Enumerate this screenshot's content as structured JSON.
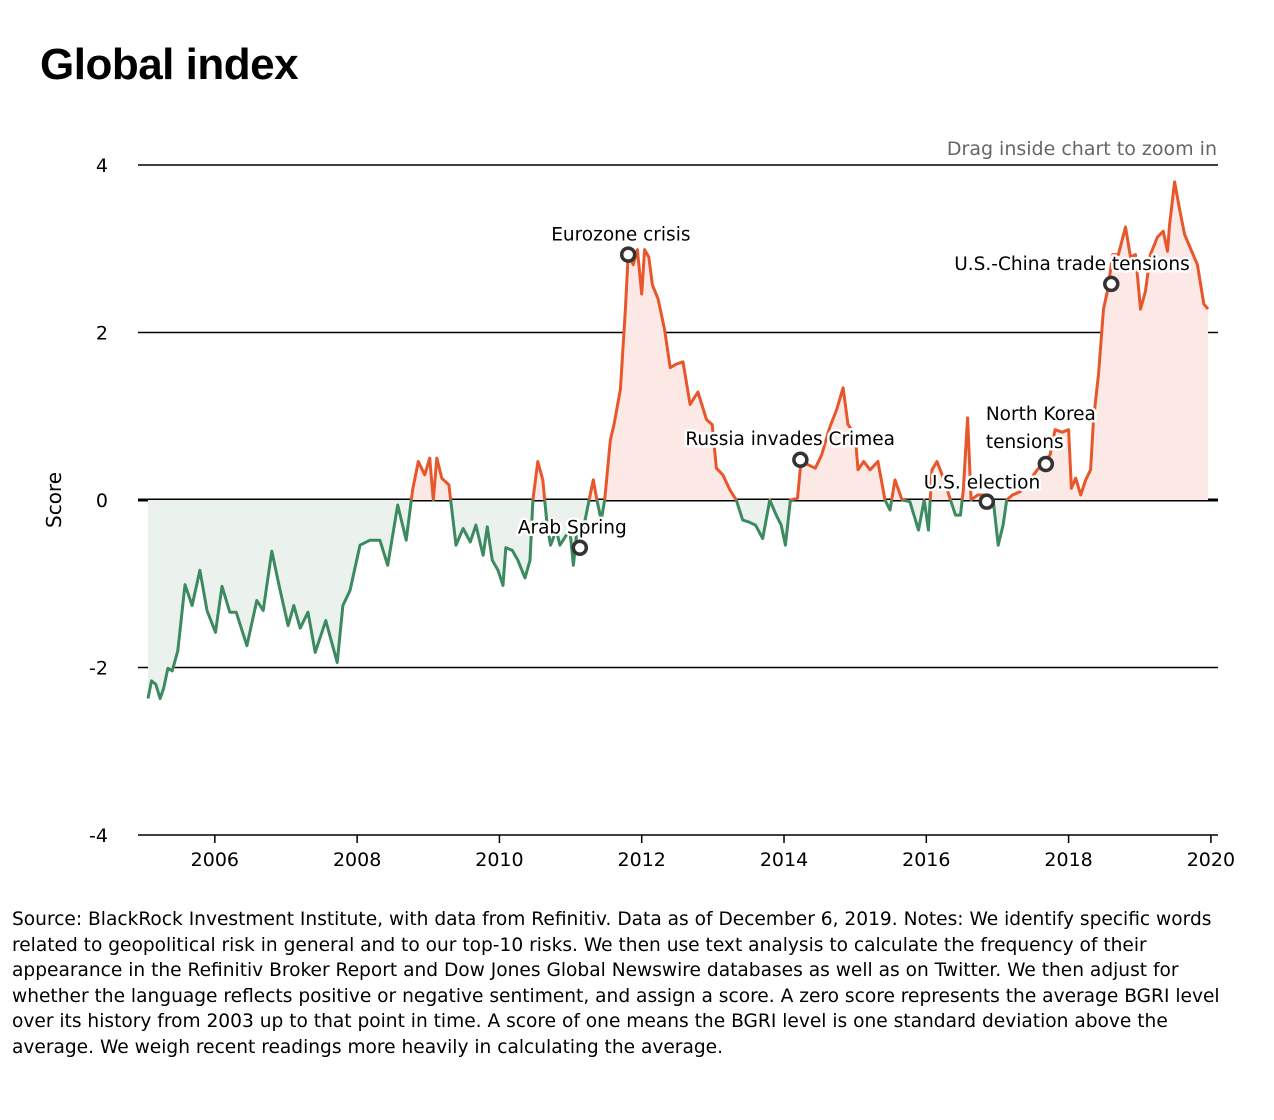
{
  "title": "Global index",
  "hint": "Drag inside chart to zoom in",
  "footnote": "Source: BlackRock Investment Institute, with data from Refinitiv. Data as of December 6, 2019. Notes: We identify specific words related to geopolitical risk in general and to our top-10 risks. We then use text analysis to calculate the frequency of their appearance in the Refinitiv Broker Report and Dow Jones Global Newswire databases as well as on Twitter. We then adjust for whether the language reflects positive or negative sentiment, and assign a score. A zero score represents the average BGRI level over its history from 2003 up to that point in time. A score of one means the BGRI level is one standard deviation above the average. We weigh recent readings more heavily in calculating the average.",
  "chart_data": {
    "type": "area",
    "title": "Global index",
    "xlabel": "",
    "ylabel": "Score",
    "xlim": [
      2004.92,
      2020.1
    ],
    "ylim": [
      -4,
      4
    ],
    "xticks": [
      "2006",
      "2008",
      "2010",
      "2012",
      "2014",
      "2016",
      "2018",
      "2020"
    ],
    "yticks": [
      "4",
      "2",
      "0",
      "-2",
      "-4"
    ],
    "grid": true,
    "colors": {
      "positive": "#e8572b",
      "negative": "#3c8a5f",
      "positive_fill": "#fce9e6",
      "negative_fill": "#ebf2ed"
    },
    "x": [
      2005.06,
      2005.11,
      2005.17,
      2005.23,
      2005.28,
      2005.34,
      2005.4,
      2005.48,
      2005.58,
      2005.68,
      2005.79,
      2005.89,
      2006.01,
      2006.1,
      2006.21,
      2006.3,
      2006.45,
      2006.59,
      2006.68,
      2006.8,
      2006.91,
      2007.03,
      2007.11,
      2007.2,
      2007.31,
      2007.41,
      2007.56,
      2007.72,
      2007.8,
      2007.9,
      2008.04,
      2008.18,
      2008.32,
      2008.43,
      2008.57,
      2008.69,
      2008.78,
      2008.86,
      2008.95,
      2009.02,
      2009.07,
      2009.12,
      2009.19,
      2009.29,
      2009.39,
      2009.49,
      2009.59,
      2009.67,
      2009.77,
      2009.83,
      2009.9,
      2009.98,
      2010.05,
      2010.09,
      2010.18,
      2010.26,
      2010.36,
      2010.43,
      2010.47,
      2010.54,
      2010.61,
      2010.67,
      2010.72,
      2010.8,
      2010.85,
      2010.94,
      2010.99,
      2011.04,
      2011.09,
      2011.18,
      2011.26,
      2011.32,
      2011.37,
      2011.43,
      2011.48,
      2011.56,
      2011.61,
      2011.7,
      2011.77,
      2011.81,
      2011.88,
      2011.94,
      2012.0,
      2012.04,
      2012.1,
      2012.15,
      2012.23,
      2012.32,
      2012.4,
      2012.48,
      2012.58,
      2012.68,
      2012.79,
      2012.91,
      2012.99,
      2013.05,
      2013.14,
      2013.24,
      2013.33,
      2013.42,
      2013.5,
      2013.6,
      2013.7,
      2013.8,
      2013.89,
      2013.96,
      2014.02,
      2014.09,
      2014.19,
      2014.24,
      2014.34,
      2014.44,
      2014.53,
      2014.64,
      2014.74,
      2014.83,
      2014.9,
      2015.0,
      2015.04,
      2015.12,
      2015.21,
      2015.32,
      2015.42,
      2015.49,
      2015.56,
      2015.66,
      2015.77,
      2015.89,
      2015.97,
      2016.03,
      2016.08,
      2016.15,
      2016.25,
      2016.34,
      2016.41,
      2016.48,
      2016.52,
      2016.58,
      2016.63,
      2016.72,
      2016.83,
      2016.94,
      2017.01,
      2017.08,
      2017.13,
      2017.21,
      2017.32,
      2017.46,
      2017.56,
      2017.63,
      2017.74,
      2017.81,
      2017.91,
      2018.0,
      2018.04,
      2018.1,
      2018.17,
      2018.24,
      2018.31,
      2018.35,
      2018.42,
      2018.49,
      2018.55,
      2018.62,
      2018.7,
      2018.8,
      2018.87,
      2018.94,
      2019.01,
      2019.08,
      2019.15,
      2019.25,
      2019.33,
      2019.39,
      2019.42,
      2019.49,
      2019.56,
      2019.63,
      2019.73,
      2019.81,
      2019.9,
      2019.96
    ],
    "series": [
      {
        "values": [
          -2.37,
          -2.16,
          -2.2,
          -2.37,
          -2.25,
          -2.01,
          -2.04,
          -1.8,
          -1.01,
          -1.26,
          -0.84,
          -1.32,
          -1.58,
          -1.03,
          -1.34,
          -1.34,
          -1.74,
          -1.2,
          -1.32,
          -0.61,
          -1.05,
          -1.5,
          -1.26,
          -1.53,
          -1.34,
          -1.82,
          -1.44,
          -1.94,
          -1.26,
          -1.08,
          -0.54,
          -0.48,
          -0.48,
          -0.78,
          -0.06,
          -0.48,
          0.12,
          0.46,
          0.3,
          0.5,
          0,
          0.5,
          0.26,
          0.18,
          -0.54,
          -0.34,
          -0.5,
          -0.3,
          -0.66,
          -0.32,
          -0.72,
          -0.84,
          -1.02,
          -0.57,
          -0.6,
          -0.72,
          -0.93,
          -0.72,
          0,
          0.46,
          0.24,
          -0.3,
          -0.54,
          -0.36,
          -0.54,
          -0.42,
          -0.36,
          -0.78,
          -0.36,
          -0.34,
          0,
          0.24,
          0,
          -0.24,
          0,
          0.72,
          0.9,
          1.32,
          2.28,
          2.93,
          2.81,
          2.99,
          2.46,
          2.99,
          2.9,
          2.57,
          2.4,
          2.04,
          1.58,
          1.62,
          1.65,
          1.14,
          1.29,
          0.96,
          0.9,
          0.38,
          0.3,
          0.12,
          0,
          -0.24,
          -0.26,
          -0.3,
          -0.46,
          0,
          -0.18,
          -0.3,
          -0.54,
          0,
          0.02,
          0.48,
          0.42,
          0.38,
          0.54,
          0.86,
          1.08,
          1.34,
          0.9,
          0.78,
          0.36,
          0.46,
          0.36,
          0.46,
          0,
          -0.12,
          0.24,
          0,
          -0.02,
          -0.36,
          0,
          -0.36,
          0.36,
          0.46,
          0.24,
          0,
          -0.18,
          -0.18,
          0.12,
          0.98,
          0,
          0.06,
          0.06,
          0,
          -0.54,
          -0.3,
          0,
          0.06,
          0.1,
          0.24,
          0.36,
          0.42,
          0.54,
          0.84,
          0.81,
          0.84,
          0.14,
          0.26,
          0.06,
          0.24,
          0.36,
          0.96,
          1.5,
          2.28,
          2.51,
          2.93,
          2.93,
          3.26,
          2.9,
          2.93,
          2.28,
          2.49,
          2.93,
          3.14,
          3.21,
          2.97,
          3.29,
          3.8,
          3.47,
          3.17,
          2.97,
          2.81,
          2.34,
          2.28
        ]
      }
    ],
    "annotations": [
      {
        "label": "Eurozone crisis",
        "x": 2011.81,
        "y": 2.93
      },
      {
        "label": "Arab Spring",
        "x": 2011.13,
        "y": -0.57
      },
      {
        "label": "Russia invades Crimea",
        "x": 2014.23,
        "y": 0.48
      },
      {
        "label": "U.S. election",
        "x": 2016.85,
        "y": -0.02
      },
      {
        "label": "North Korea tensions",
        "x": 2017.68,
        "y": 0.43
      },
      {
        "label": "U.S.-China trade tensions",
        "x": 2018.6,
        "y": 2.58
      }
    ]
  }
}
